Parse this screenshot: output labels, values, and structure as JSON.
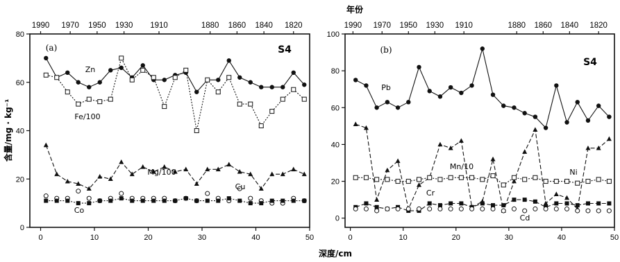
{
  "figure": {
    "top_axis_label": "年份",
    "bottom_axis_label": "深度/cm",
    "left_axis_label": "含量/mg · kg⁻¹"
  },
  "chart_data": [
    {
      "type": "line",
      "panel_label": "(a)",
      "station": "S4",
      "xlabel": "深度/cm",
      "ylabel": "含量/mg · kg⁻¹",
      "xlim": [
        -2,
        50
      ],
      "ylim": [
        0,
        80
      ],
      "x_ticks": [
        0,
        10,
        20,
        30,
        40,
        50
      ],
      "y_ticks": [
        0,
        20,
        40,
        60,
        80
      ],
      "top_ticks": [
        {
          "label": "1990",
          "depth": 0
        },
        {
          "label": "1970",
          "depth": 5.5
        },
        {
          "label": "1950",
          "depth": 10.5
        },
        {
          "label": "1930",
          "depth": 15.5
        },
        {
          "label": "1910",
          "depth": 22
        },
        {
          "label": "1880",
          "depth": 31.5
        },
        {
          "label": "1860",
          "depth": 36.5
        },
        {
          "label": "1840",
          "depth": 41.5
        },
        {
          "label": "1820",
          "depth": 47
        }
      ],
      "series": [
        {
          "name": "Zn",
          "marker": "filled-circle",
          "dash": "solid",
          "x": [
            1,
            3,
            5,
            7,
            9,
            11,
            13,
            15,
            17,
            19,
            21,
            23,
            25,
            27,
            29,
            31,
            33,
            35,
            37,
            39,
            41,
            43,
            45,
            47,
            49
          ],
          "y": [
            70,
            62,
            64,
            60,
            58,
            60,
            65,
            66,
            62,
            67,
            61,
            61,
            63,
            64,
            56,
            61,
            61,
            69,
            62,
            60,
            58,
            58,
            58,
            64,
            59
          ]
        },
        {
          "name": "Fe/100",
          "marker": "open-square",
          "dash": "dotted",
          "x": [
            1,
            3,
            5,
            7,
            9,
            11,
            13,
            15,
            17,
            19,
            21,
            23,
            25,
            27,
            29,
            31,
            33,
            35,
            37,
            39,
            41,
            43,
            45,
            47,
            49
          ],
          "y": [
            63,
            62,
            56,
            51,
            53,
            52,
            53,
            70,
            61,
            65,
            62,
            50,
            62,
            65,
            40,
            61,
            56,
            62,
            51,
            51,
            42,
            48,
            53,
            57,
            53
          ]
        },
        {
          "name": "Mg/100",
          "marker": "filled-triangle",
          "dash": "dashed",
          "x": [
            1,
            3,
            5,
            7,
            9,
            11,
            13,
            15,
            17,
            19,
            21,
            23,
            25,
            27,
            29,
            31,
            33,
            35,
            37,
            39,
            41,
            43,
            45,
            47,
            49
          ],
          "y": [
            34,
            22,
            19,
            18,
            16,
            21,
            20,
            27,
            22,
            25,
            23,
            25,
            23,
            24,
            18,
            24,
            24,
            26,
            23,
            22,
            16,
            22,
            22,
            24,
            22
          ]
        },
        {
          "name": "Cu",
          "marker": "open-circle",
          "dash": "none",
          "x": [
            1,
            3,
            5,
            7,
            9,
            11,
            13,
            15,
            17,
            19,
            21,
            23,
            25,
            27,
            29,
            31,
            33,
            35,
            37,
            39,
            41,
            43,
            45,
            47,
            49
          ],
          "y": [
            13,
            12,
            12,
            15,
            12,
            11,
            12,
            14,
            12,
            12,
            12,
            12,
            11,
            12,
            11,
            14,
            12,
            11,
            16,
            12,
            11,
            10,
            10,
            12,
            11
          ]
        },
        {
          "name": "Co",
          "marker": "filled-square",
          "dash": "dotted",
          "x": [
            1,
            3,
            5,
            7,
            9,
            11,
            13,
            15,
            17,
            19,
            21,
            23,
            25,
            27,
            29,
            31,
            33,
            35,
            37,
            39,
            41,
            43,
            45,
            47,
            49
          ],
          "y": [
            11,
            11,
            11,
            10,
            10,
            11,
            11,
            12,
            11,
            11,
            11,
            11,
            11,
            12,
            11,
            11,
            11,
            12,
            11,
            10,
            10,
            11,
            11,
            11,
            11
          ]
        }
      ]
    },
    {
      "type": "line",
      "panel_label": "(b)",
      "station": "S4",
      "xlabel": "深度/cm",
      "xlim": [
        -1,
        50
      ],
      "ylim": [
        -5,
        100
      ],
      "x_ticks": [
        0,
        10,
        20,
        30,
        40,
        50
      ],
      "y_ticks": [
        0,
        20,
        40,
        60,
        80,
        100
      ],
      "top_ticks": [
        {
          "label": "1990",
          "depth": 0.5
        },
        {
          "label": "1970",
          "depth": 6
        },
        {
          "label": "1950",
          "depth": 11
        },
        {
          "label": "1930",
          "depth": 16
        },
        {
          "label": "1910",
          "depth": 21.5
        },
        {
          "label": "1880",
          "depth": 31.5
        },
        {
          "label": "1860",
          "depth": 36.5
        },
        {
          "label": "1840",
          "depth": 41.5
        },
        {
          "label": "1820",
          "depth": 47
        }
      ],
      "series": [
        {
          "name": "Pb",
          "marker": "filled-circle",
          "dash": "solid",
          "x": [
            1,
            3,
            5,
            7,
            9,
            11,
            13,
            15,
            17,
            19,
            21,
            23,
            25,
            27,
            29,
            31,
            33,
            35,
            37,
            39,
            41,
            43,
            45,
            47,
            49
          ],
          "y": [
            75,
            72,
            60,
            63,
            60,
            63,
            82,
            69,
            66,
            71,
            68,
            72,
            92,
            67,
            61,
            60,
            57,
            55,
            49,
            72,
            52,
            63,
            53,
            61,
            55
          ]
        },
        {
          "name": "Mn/10",
          "marker": "filled-triangle",
          "dash": "dashed",
          "x": [
            1,
            3,
            5,
            7,
            9,
            11,
            13,
            15,
            17,
            19,
            21,
            23,
            25,
            27,
            29,
            31,
            33,
            35,
            37,
            39,
            41,
            43,
            45,
            47,
            49
          ],
          "y": [
            51,
            49,
            10,
            26,
            31,
            5,
            18,
            22,
            40,
            38,
            42,
            6,
            9,
            32,
            4,
            20,
            36,
            48,
            8,
            13,
            11,
            5,
            38,
            38,
            43
          ]
        },
        {
          "name": "Ni",
          "marker": "open-square",
          "dash": "dotted",
          "x": [
            1,
            3,
            5,
            7,
            9,
            11,
            13,
            15,
            17,
            19,
            21,
            23,
            25,
            27,
            29,
            31,
            33,
            35,
            37,
            39,
            41,
            43,
            45,
            47,
            49
          ],
          "y": [
            22,
            22,
            21,
            21,
            20,
            20,
            21,
            22,
            21,
            22,
            22,
            22,
            21,
            23,
            18,
            22,
            21,
            22,
            20,
            20,
            20,
            19,
            20,
            21,
            20
          ]
        },
        {
          "name": "Cr",
          "marker": "filled-square",
          "dash": "dashed",
          "x": [
            1,
            3,
            5,
            7,
            9,
            11,
            13,
            15,
            17,
            19,
            21,
            23,
            25,
            27,
            29,
            31,
            33,
            35,
            37,
            39,
            41,
            43,
            45,
            47,
            49
          ],
          "y": [
            6,
            8,
            6,
            5,
            6,
            4,
            4,
            8,
            7,
            8,
            8,
            6,
            8,
            7,
            7,
            10,
            10,
            9,
            6,
            8,
            8,
            7,
            8,
            8,
            8
          ]
        },
        {
          "name": "Cd",
          "marker": "open-circle",
          "dash": "none",
          "x": [
            1,
            3,
            5,
            7,
            9,
            11,
            13,
            15,
            17,
            19,
            21,
            23,
            25,
            27,
            29,
            31,
            33,
            35,
            37,
            39,
            41,
            43,
            45,
            47,
            49
          ],
          "y": [
            5,
            5,
            4,
            5,
            5,
            5,
            5,
            5,
            5,
            5,
            5,
            5,
            5,
            5,
            4,
            5,
            4,
            5,
            5,
            5,
            5,
            4,
            4,
            4,
            4
          ]
        }
      ]
    }
  ]
}
